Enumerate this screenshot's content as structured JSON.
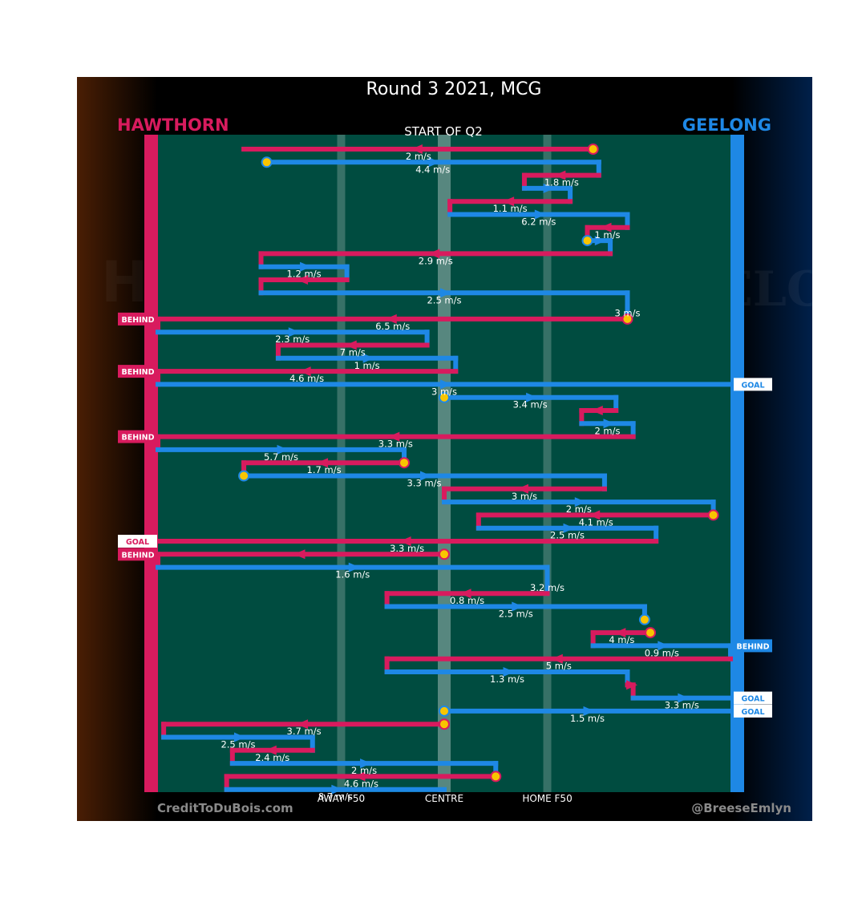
{
  "title": "Round 3 2021, MCG",
  "subtitle": "START OF Q2",
  "teams": {
    "home": {
      "name": "HAWTHORN",
      "color": "#d81b5e"
    },
    "away": {
      "name": "GEELONG",
      "color": "#1e88e5"
    }
  },
  "logo_watermarks": {
    "left": "HAWKS",
    "right": "GEELONG"
  },
  "axis_labels": [
    "AWAY F50",
    "CENTRE",
    "HOME F50"
  ],
  "credit_left": "CreditToDuBois.com",
  "credit_right": "@BreeseEmlyn",
  "colors": {
    "field": "#004c40",
    "hawthorn": "#d81b5e",
    "geelong": "#1e88e5",
    "ball": "#f9c500"
  },
  "chart_data": {
    "type": "chain-flow",
    "xlabel": "",
    "ylabel": "",
    "x_scale": "field position: 0 = Hawthorn end, 100 = Geelong end",
    "events": [
      {
        "team": "hawthorn",
        "x1": 76,
        "x2": 15,
        "speed": "2 m/s",
        "start": "ball"
      },
      {
        "team": "geelong",
        "x1": 19,
        "x2": 77,
        "speed": "4.4 m/s",
        "start": "ball"
      },
      {
        "team": "hawthorn",
        "x1": 77,
        "x2": 64,
        "speed": "1.8 m/s"
      },
      {
        "team": "geelong",
        "x1": 64,
        "x2": 72,
        "speed": ""
      },
      {
        "team": "hawthorn",
        "x1": 72,
        "x2": 51,
        "speed": "1.1 m/s"
      },
      {
        "team": "geelong",
        "x1": 51,
        "x2": 82,
        "speed": "6.2 m/s"
      },
      {
        "team": "hawthorn",
        "x1": 82,
        "x2": 75,
        "speed": "1 m/s"
      },
      {
        "team": "geelong",
        "x1": 75,
        "x2": 79,
        "speed": "",
        "start": "ball"
      },
      {
        "team": "hawthorn",
        "x1": 79,
        "x2": 18,
        "speed": "2.9 m/s"
      },
      {
        "team": "geelong",
        "x1": 18,
        "x2": 33,
        "speed": "1.2 m/s"
      },
      {
        "team": "hawthorn",
        "x1": 33,
        "x2": 18,
        "speed": ""
      },
      {
        "team": "geelong",
        "x1": 18,
        "x2": 82,
        "speed": "2.5 m/s"
      },
      {
        "team": "geelong",
        "x1": 82,
        "x2": 82,
        "speed": "3 m/s"
      },
      {
        "team": "hawthorn",
        "x1": 82,
        "x2": 0,
        "speed": "6.5 m/s",
        "start": "ball",
        "result": "BEHIND"
      },
      {
        "team": "geelong",
        "x1": 0,
        "x2": 47,
        "speed": "2.3 m/s"
      },
      {
        "team": "hawthorn",
        "x1": 47,
        "x2": 21,
        "speed": "7 m/s"
      },
      {
        "team": "geelong",
        "x1": 21,
        "x2": 52,
        "speed": "1 m/s"
      },
      {
        "team": "hawthorn",
        "x1": 52,
        "x2": 0,
        "speed": "4.6 m/s",
        "result": "BEHIND"
      },
      {
        "team": "geelong",
        "x1": 0,
        "x2": 100,
        "speed": "3 m/s",
        "result": "GOAL"
      },
      {
        "team": "geelong",
        "x1": 50,
        "x2": 80,
        "speed": "3.4 m/s",
        "start": "ball"
      },
      {
        "team": "hawthorn",
        "x1": 80,
        "x2": 74,
        "speed": ""
      },
      {
        "team": "geelong",
        "x1": 74,
        "x2": 83,
        "speed": "2 m/s"
      },
      {
        "team": "hawthorn",
        "x1": 83,
        "x2": 0,
        "speed": "3.3 m/s",
        "result": "BEHIND"
      },
      {
        "team": "geelong",
        "x1": 0,
        "x2": 43,
        "speed": "5.7 m/s"
      },
      {
        "team": "hawthorn",
        "x1": 43,
        "x2": 15,
        "speed": "1.7 m/s",
        "start": "ball"
      },
      {
        "team": "geelong",
        "x1": 15,
        "x2": 78,
        "speed": "3.3 m/s",
        "start": "ball"
      },
      {
        "team": "hawthorn",
        "x1": 78,
        "x2": 50,
        "speed": "3 m/s"
      },
      {
        "team": "geelong",
        "x1": 50,
        "x2": 97,
        "speed": "2 m/s"
      },
      {
        "team": "hawthorn",
        "x1": 97,
        "x2": 56,
        "speed": "4.1 m/s",
        "start": "ball"
      },
      {
        "team": "geelong",
        "x1": 56,
        "x2": 87,
        "speed": "2.5 m/s"
      },
      {
        "team": "hawthorn",
        "x1": 87,
        "x2": 0,
        "speed": "3.3 m/s",
        "result": "GOAL"
      },
      {
        "team": "hawthorn",
        "x1": 50,
        "x2": 0,
        "speed": "",
        "start": "ball",
        "result": "BEHIND"
      },
      {
        "team": "geelong",
        "x1": 0,
        "x2": 68,
        "speed": "1.6 m/s"
      },
      {
        "team": "geelong",
        "x1": 68,
        "x2": 68,
        "speed": "3.2 m/s"
      },
      {
        "team": "hawthorn",
        "x1": 68,
        "x2": 40,
        "speed": "0.8 m/s"
      },
      {
        "team": "geelong",
        "x1": 40,
        "x2": 85,
        "speed": "2.5 m/s"
      },
      {
        "team": "geelong",
        "x1": 85,
        "x2": 85,
        "speed": "",
        "start": "ball"
      },
      {
        "team": "hawthorn",
        "x1": 86,
        "x2": 76,
        "speed": "4 m/s",
        "start": "ball"
      },
      {
        "team": "geelong",
        "x1": 76,
        "x2": 100,
        "speed": "0.9 m/s",
        "result": "BEHIND"
      },
      {
        "team": "hawthorn",
        "x1": 100,
        "x2": 40,
        "speed": "5 m/s"
      },
      {
        "team": "geelong",
        "x1": 40,
        "x2": 82,
        "speed": "1.3 m/s"
      },
      {
        "team": "hawthorn",
        "x1": 82,
        "x2": 83,
        "speed": ""
      },
      {
        "team": "geelong",
        "x1": 83,
        "x2": 100,
        "speed": "3.3 m/s",
        "result": "GOAL"
      },
      {
        "team": "geelong",
        "x1": 50,
        "x2": 100,
        "speed": "1.5 m/s",
        "start": "ball",
        "result": "GOAL"
      },
      {
        "team": "hawthorn",
        "x1": 50,
        "x2": 1,
        "speed": "3.7 m/s",
        "start": "ball"
      },
      {
        "team": "geelong",
        "x1": 1,
        "x2": 27,
        "speed": "2.5 m/s"
      },
      {
        "team": "hawthorn",
        "x1": 27,
        "x2": 13,
        "speed": "2.4 m/s"
      },
      {
        "team": "geelong",
        "x1": 13,
        "x2": 59,
        "speed": "2 m/s"
      },
      {
        "team": "hawthorn",
        "x1": 59,
        "x2": 12,
        "speed": "4.6 m/s",
        "start": "ball"
      },
      {
        "team": "geelong",
        "x1": 12,
        "x2": 50,
        "speed": "8.7 m/s"
      }
    ]
  }
}
